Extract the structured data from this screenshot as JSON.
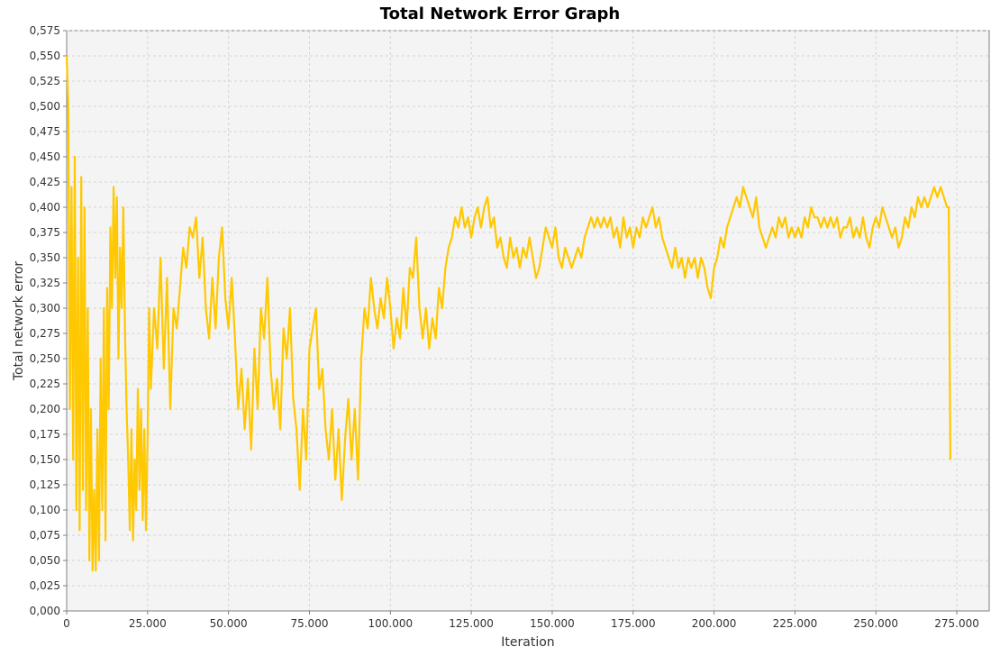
{
  "chart_data": {
    "type": "line",
    "title": "Total Network Error Graph",
    "xlabel": "Iteration",
    "ylabel": "Total network error",
    "xlim": [
      0,
      285000
    ],
    "ylim": [
      0,
      0.575
    ],
    "grid": true,
    "x_ticks": [
      0,
      25000,
      50000,
      75000,
      100000,
      125000,
      150000,
      175000,
      200000,
      225000,
      250000,
      275000
    ],
    "x_tick_labels": [
      "0",
      "25.000",
      "50.000",
      "75.000",
      "100.000",
      "125.000",
      "150.000",
      "175.000",
      "200.000",
      "225.000",
      "250.000",
      "275.000"
    ],
    "y_ticks": [
      0,
      0.025,
      0.05,
      0.075,
      0.1,
      0.125,
      0.15,
      0.175,
      0.2,
      0.225,
      0.25,
      0.275,
      0.3,
      0.325,
      0.35,
      0.375,
      0.4,
      0.425,
      0.45,
      0.475,
      0.5,
      0.525,
      0.55,
      0.575
    ],
    "y_tick_labels": [
      "0,000",
      "0,025",
      "0,050",
      "0,075",
      "0,100",
      "0,125",
      "0,150",
      "0,175",
      "0,200",
      "0,225",
      "0,250",
      "0,275",
      "0,300",
      "0,325",
      "0,350",
      "0,375",
      "0,400",
      "0,425",
      "0,450",
      "0,475",
      "0,500",
      "0,525",
      "0,550",
      "0,575"
    ],
    "series": [
      {
        "color": "#ffc800",
        "values": [
          [
            0,
            0.55
          ],
          [
            500,
            0.5
          ],
          [
            1000,
            0.2
          ],
          [
            1500,
            0.42
          ],
          [
            2000,
            0.15
          ],
          [
            2500,
            0.45
          ],
          [
            3000,
            0.1
          ],
          [
            3500,
            0.35
          ],
          [
            4000,
            0.08
          ],
          [
            4500,
            0.43
          ],
          [
            5000,
            0.12
          ],
          [
            5500,
            0.4
          ],
          [
            6000,
            0.1
          ],
          [
            6500,
            0.3
          ],
          [
            7000,
            0.05
          ],
          [
            7500,
            0.2
          ],
          [
            8000,
            0.04
          ],
          [
            8500,
            0.12
          ],
          [
            9000,
            0.04
          ],
          [
            9500,
            0.18
          ],
          [
            10000,
            0.05
          ],
          [
            10500,
            0.25
          ],
          [
            11000,
            0.1
          ],
          [
            11500,
            0.3
          ],
          [
            12000,
            0.07
          ],
          [
            12500,
            0.32
          ],
          [
            13000,
            0.2
          ],
          [
            13500,
            0.38
          ],
          [
            14000,
            0.3
          ],
          [
            14500,
            0.42
          ],
          [
            15000,
            0.33
          ],
          [
            15500,
            0.41
          ],
          [
            16000,
            0.25
          ],
          [
            16500,
            0.36
          ],
          [
            17000,
            0.3
          ],
          [
            17500,
            0.4
          ],
          [
            18000,
            0.28
          ],
          [
            18500,
            0.2
          ],
          [
            19000,
            0.15
          ],
          [
            19500,
            0.08
          ],
          [
            20000,
            0.18
          ],
          [
            20500,
            0.07
          ],
          [
            21000,
            0.15
          ],
          [
            21500,
            0.1
          ],
          [
            22000,
            0.22
          ],
          [
            22500,
            0.12
          ],
          [
            23000,
            0.2
          ],
          [
            23500,
            0.09
          ],
          [
            24000,
            0.18
          ],
          [
            24500,
            0.08
          ],
          [
            25000,
            0.17
          ],
          [
            25500,
            0.3
          ],
          [
            26000,
            0.22
          ],
          [
            27000,
            0.3
          ],
          [
            28000,
            0.26
          ],
          [
            29000,
            0.35
          ],
          [
            30000,
            0.24
          ],
          [
            31000,
            0.33
          ],
          [
            32000,
            0.2
          ],
          [
            33000,
            0.3
          ],
          [
            34000,
            0.28
          ],
          [
            35000,
            0.32
          ],
          [
            36000,
            0.36
          ],
          [
            37000,
            0.34
          ],
          [
            38000,
            0.38
          ],
          [
            39000,
            0.37
          ],
          [
            40000,
            0.39
          ],
          [
            41000,
            0.33
          ],
          [
            42000,
            0.37
          ],
          [
            43000,
            0.3
          ],
          [
            44000,
            0.27
          ],
          [
            45000,
            0.33
          ],
          [
            46000,
            0.28
          ],
          [
            47000,
            0.35
          ],
          [
            48000,
            0.38
          ],
          [
            49000,
            0.31
          ],
          [
            50000,
            0.28
          ],
          [
            51000,
            0.33
          ],
          [
            52000,
            0.27
          ],
          [
            53000,
            0.2
          ],
          [
            54000,
            0.24
          ],
          [
            55000,
            0.18
          ],
          [
            56000,
            0.23
          ],
          [
            57000,
            0.16
          ],
          [
            58000,
            0.26
          ],
          [
            59000,
            0.2
          ],
          [
            60000,
            0.3
          ],
          [
            61000,
            0.27
          ],
          [
            62000,
            0.33
          ],
          [
            63000,
            0.24
          ],
          [
            64000,
            0.2
          ],
          [
            65000,
            0.23
          ],
          [
            66000,
            0.18
          ],
          [
            67000,
            0.28
          ],
          [
            68000,
            0.25
          ],
          [
            69000,
            0.3
          ],
          [
            70000,
            0.21
          ],
          [
            71000,
            0.18
          ],
          [
            72000,
            0.12
          ],
          [
            73000,
            0.2
          ],
          [
            74000,
            0.15
          ],
          [
            75000,
            0.26
          ],
          [
            76000,
            0.28
          ],
          [
            77000,
            0.3
          ],
          [
            78000,
            0.22
          ],
          [
            79000,
            0.24
          ],
          [
            80000,
            0.18
          ],
          [
            81000,
            0.15
          ],
          [
            82000,
            0.2
          ],
          [
            83000,
            0.13
          ],
          [
            84000,
            0.18
          ],
          [
            85000,
            0.11
          ],
          [
            86000,
            0.17
          ],
          [
            87000,
            0.21
          ],
          [
            88000,
            0.15
          ],
          [
            89000,
            0.2
          ],
          [
            90000,
            0.13
          ],
          [
            91000,
            0.25
          ],
          [
            92000,
            0.3
          ],
          [
            93000,
            0.28
          ],
          [
            94000,
            0.33
          ],
          [
            95000,
            0.3
          ],
          [
            96000,
            0.28
          ],
          [
            97000,
            0.31
          ],
          [
            98000,
            0.29
          ],
          [
            99000,
            0.33
          ],
          [
            100000,
            0.3
          ],
          [
            101000,
            0.26
          ],
          [
            102000,
            0.29
          ],
          [
            103000,
            0.27
          ],
          [
            104000,
            0.32
          ],
          [
            105000,
            0.28
          ],
          [
            106000,
            0.34
          ],
          [
            107000,
            0.33
          ],
          [
            108000,
            0.37
          ],
          [
            109000,
            0.3
          ],
          [
            110000,
            0.27
          ],
          [
            111000,
            0.3
          ],
          [
            112000,
            0.26
          ],
          [
            113000,
            0.29
          ],
          [
            114000,
            0.27
          ],
          [
            115000,
            0.32
          ],
          [
            116000,
            0.3
          ],
          [
            117000,
            0.34
          ],
          [
            118000,
            0.36
          ],
          [
            119000,
            0.37
          ],
          [
            120000,
            0.39
          ],
          [
            121000,
            0.38
          ],
          [
            122000,
            0.4
          ],
          [
            123000,
            0.38
          ],
          [
            124000,
            0.39
          ],
          [
            125000,
            0.37
          ],
          [
            126000,
            0.39
          ],
          [
            127000,
            0.4
          ],
          [
            128000,
            0.38
          ],
          [
            129000,
            0.4
          ],
          [
            130000,
            0.41
          ],
          [
            131000,
            0.38
          ],
          [
            132000,
            0.39
          ],
          [
            133000,
            0.36
          ],
          [
            134000,
            0.37
          ],
          [
            135000,
            0.35
          ],
          [
            136000,
            0.34
          ],
          [
            137000,
            0.37
          ],
          [
            138000,
            0.35
          ],
          [
            139000,
            0.36
          ],
          [
            140000,
            0.34
          ],
          [
            141000,
            0.36
          ],
          [
            142000,
            0.35
          ],
          [
            143000,
            0.37
          ],
          [
            144000,
            0.35
          ],
          [
            145000,
            0.33
          ],
          [
            146000,
            0.34
          ],
          [
            147000,
            0.36
          ],
          [
            148000,
            0.38
          ],
          [
            149000,
            0.37
          ],
          [
            150000,
            0.36
          ],
          [
            151000,
            0.38
          ],
          [
            152000,
            0.35
          ],
          [
            153000,
            0.34
          ],
          [
            154000,
            0.36
          ],
          [
            155000,
            0.35
          ],
          [
            156000,
            0.34
          ],
          [
            157000,
            0.35
          ],
          [
            158000,
            0.36
          ],
          [
            159000,
            0.35
          ],
          [
            160000,
            0.37
          ],
          [
            161000,
            0.38
          ],
          [
            162000,
            0.39
          ],
          [
            163000,
            0.38
          ],
          [
            164000,
            0.39
          ],
          [
            165000,
            0.38
          ],
          [
            166000,
            0.39
          ],
          [
            167000,
            0.38
          ],
          [
            168000,
            0.39
          ],
          [
            169000,
            0.37
          ],
          [
            170000,
            0.38
          ],
          [
            171000,
            0.36
          ],
          [
            172000,
            0.39
          ],
          [
            173000,
            0.37
          ],
          [
            174000,
            0.38
          ],
          [
            175000,
            0.36
          ],
          [
            176000,
            0.38
          ],
          [
            177000,
            0.37
          ],
          [
            178000,
            0.39
          ],
          [
            179000,
            0.38
          ],
          [
            180000,
            0.39
          ],
          [
            181000,
            0.4
          ],
          [
            182000,
            0.38
          ],
          [
            183000,
            0.39
          ],
          [
            184000,
            0.37
          ],
          [
            185000,
            0.36
          ],
          [
            186000,
            0.35
          ],
          [
            187000,
            0.34
          ],
          [
            188000,
            0.36
          ],
          [
            189000,
            0.34
          ],
          [
            190000,
            0.35
          ],
          [
            191000,
            0.33
          ],
          [
            192000,
            0.35
          ],
          [
            193000,
            0.34
          ],
          [
            194000,
            0.35
          ],
          [
            195000,
            0.33
          ],
          [
            196000,
            0.35
          ],
          [
            197000,
            0.34
          ],
          [
            198000,
            0.32
          ],
          [
            199000,
            0.31
          ],
          [
            200000,
            0.34
          ],
          [
            201000,
            0.35
          ],
          [
            202000,
            0.37
          ],
          [
            203000,
            0.36
          ],
          [
            204000,
            0.38
          ],
          [
            205000,
            0.39
          ],
          [
            206000,
            0.4
          ],
          [
            207000,
            0.41
          ],
          [
            208000,
            0.4
          ],
          [
            209000,
            0.42
          ],
          [
            210000,
            0.41
          ],
          [
            211000,
            0.4
          ],
          [
            212000,
            0.39
          ],
          [
            213000,
            0.41
          ],
          [
            214000,
            0.38
          ],
          [
            215000,
            0.37
          ],
          [
            216000,
            0.36
          ],
          [
            217000,
            0.37
          ],
          [
            218000,
            0.38
          ],
          [
            219000,
            0.37
          ],
          [
            220000,
            0.39
          ],
          [
            221000,
            0.38
          ],
          [
            222000,
            0.39
          ],
          [
            223000,
            0.37
          ],
          [
            224000,
            0.38
          ],
          [
            225000,
            0.37
          ],
          [
            226000,
            0.38
          ],
          [
            227000,
            0.37
          ],
          [
            228000,
            0.39
          ],
          [
            229000,
            0.38
          ],
          [
            230000,
            0.4
          ],
          [
            231000,
            0.39
          ],
          [
            232000,
            0.39
          ],
          [
            233000,
            0.38
          ],
          [
            234000,
            0.39
          ],
          [
            235000,
            0.38
          ],
          [
            236000,
            0.39
          ],
          [
            237000,
            0.38
          ],
          [
            238000,
            0.39
          ],
          [
            239000,
            0.37
          ],
          [
            240000,
            0.38
          ],
          [
            241000,
            0.38
          ],
          [
            242000,
            0.39
          ],
          [
            243000,
            0.37
          ],
          [
            244000,
            0.38
          ],
          [
            245000,
            0.37
          ],
          [
            246000,
            0.39
          ],
          [
            247000,
            0.37
          ],
          [
            248000,
            0.36
          ],
          [
            249000,
            0.38
          ],
          [
            250000,
            0.39
          ],
          [
            251000,
            0.38
          ],
          [
            252000,
            0.4
          ],
          [
            253000,
            0.39
          ],
          [
            254000,
            0.38
          ],
          [
            255000,
            0.37
          ],
          [
            256000,
            0.38
          ],
          [
            257000,
            0.36
          ],
          [
            258000,
            0.37
          ],
          [
            259000,
            0.39
          ],
          [
            260000,
            0.38
          ],
          [
            261000,
            0.4
          ],
          [
            262000,
            0.39
          ],
          [
            263000,
            0.41
          ],
          [
            264000,
            0.4
          ],
          [
            265000,
            0.41
          ],
          [
            266000,
            0.4
          ],
          [
            267000,
            0.41
          ],
          [
            268000,
            0.42
          ],
          [
            269000,
            0.41
          ],
          [
            270000,
            0.42
          ],
          [
            271000,
            0.41
          ],
          [
            272000,
            0.4
          ],
          [
            272500,
            0.4
          ],
          [
            273000,
            0.15
          ]
        ]
      }
    ]
  }
}
